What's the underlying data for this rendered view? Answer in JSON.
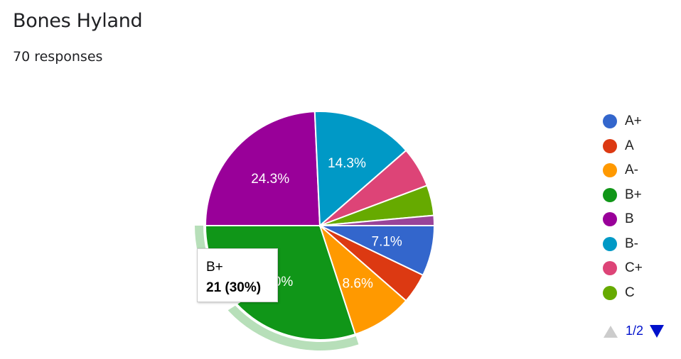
{
  "header": {
    "title": "Bones Hyland",
    "responses": "70 responses"
  },
  "chart_data": {
    "type": "pie",
    "title": "Bones Hyland",
    "categories": [
      "A+",
      "A",
      "A-",
      "B+",
      "B",
      "B-",
      "C+",
      "C",
      null
    ],
    "values": [
      5,
      3,
      6,
      21,
      17,
      10,
      4,
      3,
      1
    ],
    "colors": [
      "#3366cc",
      "#dc3912",
      "#ff9900",
      "#109618",
      "#990099",
      "#0099c6",
      "#dd4477",
      "#66aa00",
      "#994499"
    ],
    "slice_labels": [
      "7.1%",
      "",
      "8.6%",
      "30%",
      "24.3%",
      "14.3%",
      "",
      "",
      ""
    ],
    "start_angle_deg": 90,
    "legend": "right",
    "highlighted": "B+"
  },
  "tooltip": {
    "label": "B+",
    "value": "21 (30%)"
  },
  "legend": {
    "items": [
      "A+",
      "A",
      "A-",
      "B+",
      "B",
      "B-",
      "C+",
      "C"
    ],
    "page": "1/2"
  }
}
